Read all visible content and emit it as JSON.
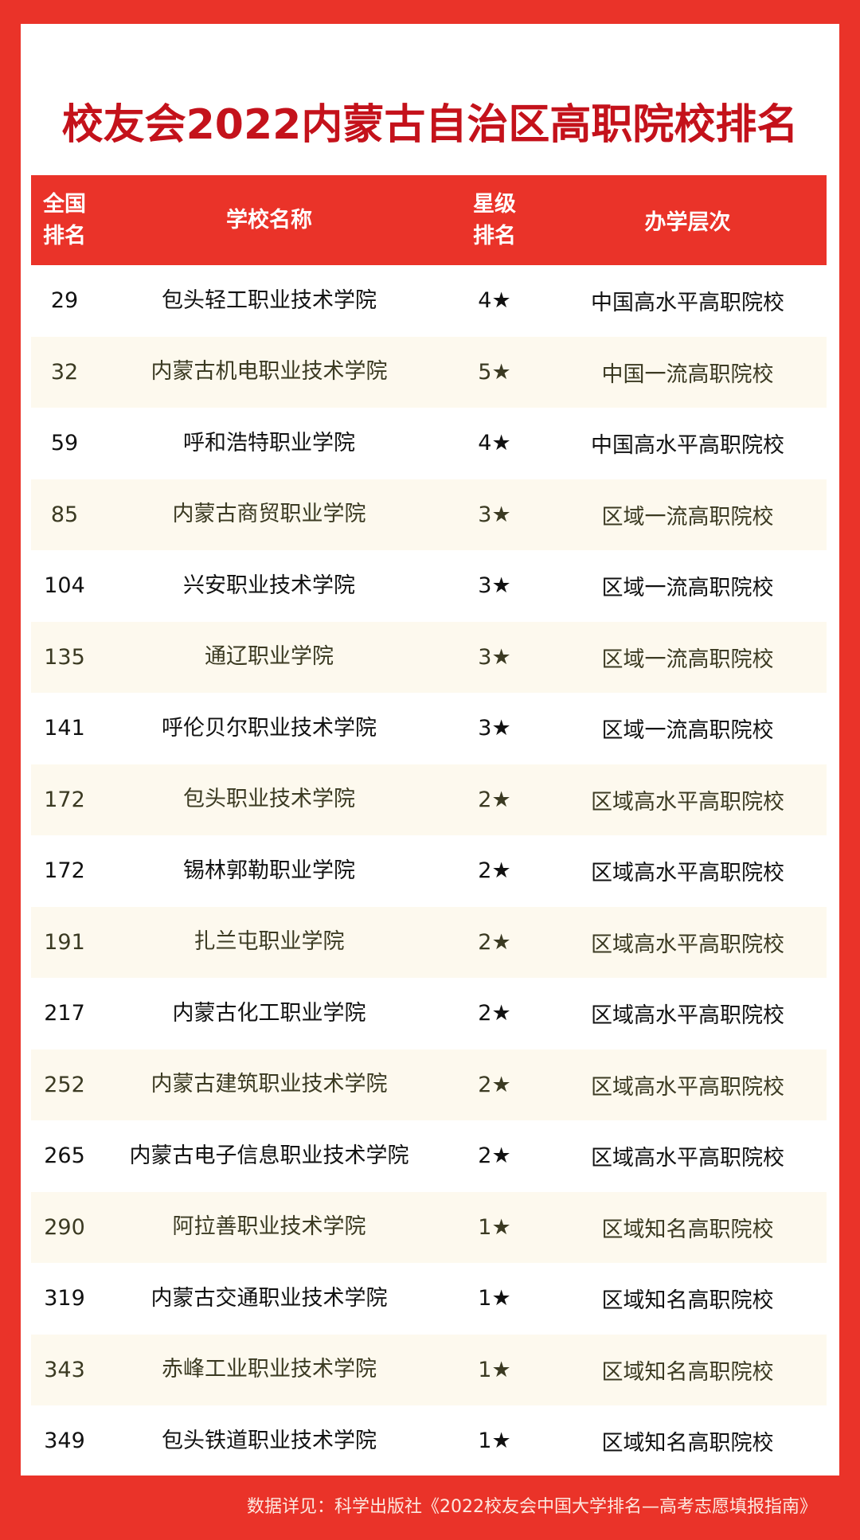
{
  "title": "校友会2022内蒙古自治区高职院校排名",
  "headers": {
    "rank_line1": "全国",
    "rank_line2": "排名",
    "name": "学校名称",
    "star_line1": "星级",
    "star_line2": "排名",
    "level": "办学层次"
  },
  "rows": [
    {
      "rank": "29",
      "name": "包头轻工职业技术学院",
      "star": "4★",
      "level": "中国高水平高职院校"
    },
    {
      "rank": "32",
      "name": "内蒙古机电职业技术学院",
      "star": "5★",
      "level": "中国一流高职院校"
    },
    {
      "rank": "59",
      "name": "呼和浩特职业学院",
      "star": "4★",
      "level": "中国高水平高职院校"
    },
    {
      "rank": "85",
      "name": "内蒙古商贸职业学院",
      "star": "3★",
      "level": "区域一流高职院校"
    },
    {
      "rank": "104",
      "name": "兴安职业技术学院",
      "star": "3★",
      "level": "区域一流高职院校"
    },
    {
      "rank": "135",
      "name": "通辽职业学院",
      "star": "3★",
      "level": "区域一流高职院校"
    },
    {
      "rank": "141",
      "name": "呼伦贝尔职业技术学院",
      "star": "3★",
      "level": "区域一流高职院校"
    },
    {
      "rank": "172",
      "name": "包头职业技术学院",
      "star": "2★",
      "level": "区域高水平高职院校"
    },
    {
      "rank": "172",
      "name": "锡林郭勒职业学院",
      "star": "2★",
      "level": "区域高水平高职院校"
    },
    {
      "rank": "191",
      "name": "扎兰屯职业学院",
      "star": "2★",
      "level": "区域高水平高职院校"
    },
    {
      "rank": "217",
      "name": "内蒙古化工职业学院",
      "star": "2★",
      "level": "区域高水平高职院校"
    },
    {
      "rank": "252",
      "name": "内蒙古建筑职业技术学院",
      "star": "2★",
      "level": "区域高水平高职院校"
    },
    {
      "rank": "265",
      "name": "内蒙古电子信息职业技术学院",
      "star": "2★",
      "level": "区域高水平高职院校"
    },
    {
      "rank": "290",
      "name": "阿拉善职业技术学院",
      "star": "1★",
      "level": "区域知名高职院校"
    },
    {
      "rank": "319",
      "name": "内蒙古交通职业技术学院",
      "star": "1★",
      "level": "区域知名高职院校"
    },
    {
      "rank": "343",
      "name": "赤峰工业职业技术学院",
      "star": "1★",
      "level": "区域知名高职院校"
    },
    {
      "rank": "349",
      "name": "包头铁道职业技术学院",
      "star": "1★",
      "level": "区域知名高职院校"
    }
  ],
  "footer": "数据详见：科学出版社《2022校友会中国大学排名—高考志愿填报指南》",
  "colors": {
    "border": "#ea3329",
    "title": "#c4121b",
    "alt_row": "#fdf9ee"
  }
}
